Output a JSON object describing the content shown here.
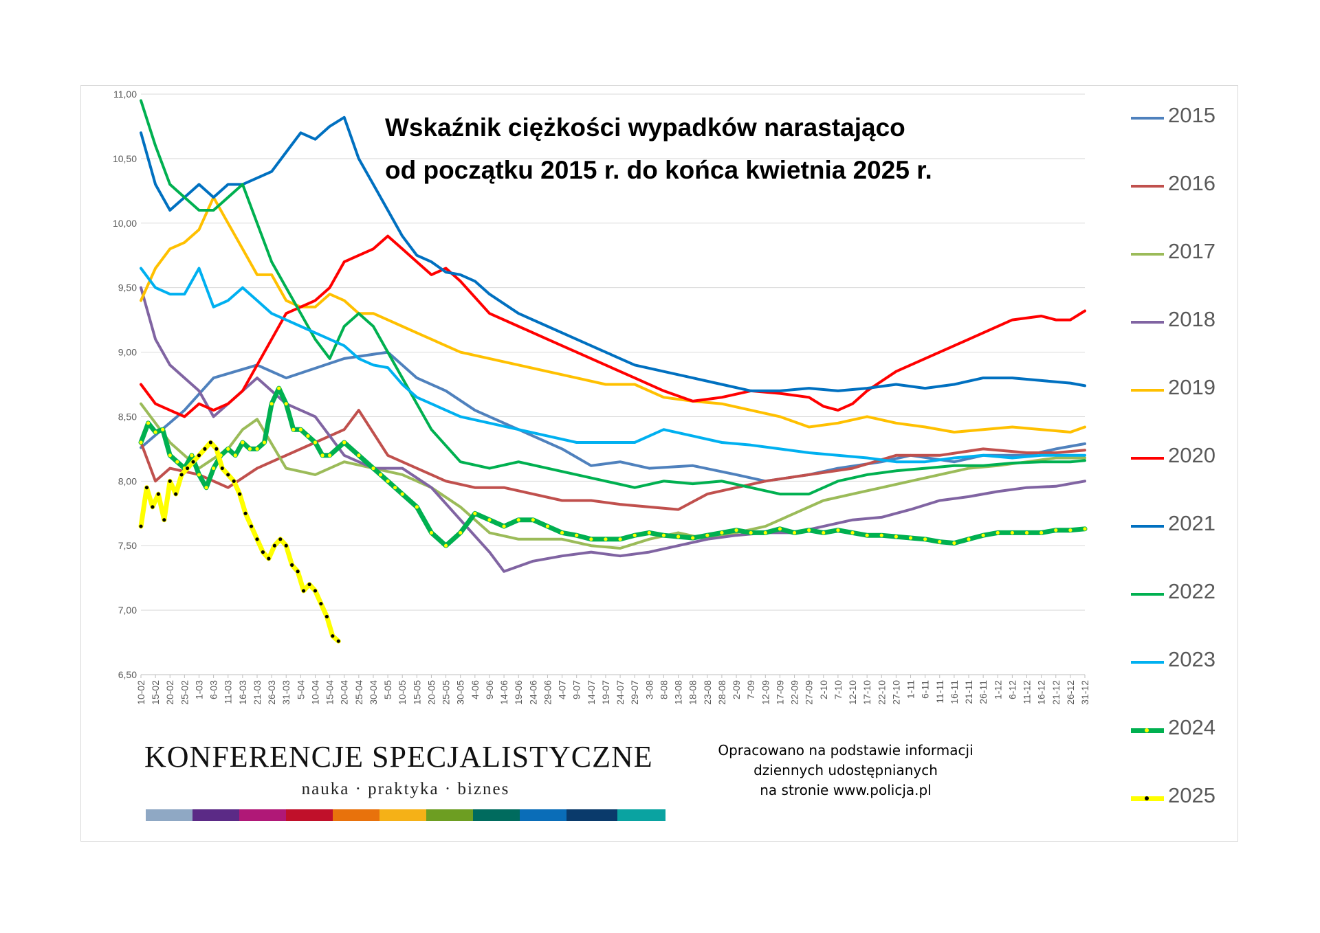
{
  "title": {
    "line1": "Wskaźnik ciężkości wypadków narastająco",
    "line2": "od początku 2015 r. do końca kwietnia 2025 r."
  },
  "chart_data": {
    "type": "line",
    "title": "Wskaźnik ciężkości wypadków narastająco od początku 2015 r. do końca kwietnia 2025 r.",
    "xlabel": "",
    "ylabel": "",
    "ylim": [
      6.5,
      11.0
    ],
    "y_ticks": [
      "6,50",
      "7,00",
      "7,50",
      "8,00",
      "8,50",
      "9,00",
      "9,50",
      "10,00",
      "10,50",
      "11,00"
    ],
    "grid": true,
    "legend_position": "right",
    "x_labels": [
      "10-02",
      "15-02",
      "20-02",
      "25-02",
      "1-03",
      "6-03",
      "11-03",
      "16-03",
      "21-03",
      "26-03",
      "31-03",
      "5-04",
      "10-04",
      "15-04",
      "20-04",
      "25-04",
      "30-04",
      "5-05",
      "10-05",
      "15-05",
      "20-05",
      "25-05",
      "30-05",
      "4-06",
      "9-06",
      "14-06",
      "19-06",
      "24-06",
      "29-06",
      "4-07",
      "9-07",
      "14-07",
      "19-07",
      "24-07",
      "29-07",
      "3-08",
      "8-08",
      "13-08",
      "18-08",
      "23-08",
      "28-08",
      "2-09",
      "7-09",
      "12-09",
      "17-09",
      "22-09",
      "27-09",
      "2-10",
      "7-10",
      "12-10",
      "17-10",
      "22-10",
      "27-10",
      "1-11",
      "6-11",
      "11-11",
      "16-11",
      "21-11",
      "26-11",
      "1-12",
      "6-12",
      "11-12",
      "16-12",
      "21-12",
      "26-12",
      "31-12"
    ],
    "series": [
      {
        "name": "2015",
        "color": "#4f81bd",
        "x": [
          0,
          3,
          5,
          8,
          10,
          14,
          17,
          19,
          21,
          23,
          26,
          29,
          31,
          33,
          35,
          38,
          41,
          43,
          46,
          48,
          51,
          53,
          56,
          58,
          61,
          63,
          65
        ],
        "values": [
          8.26,
          8.55,
          8.8,
          8.9,
          8.8,
          8.95,
          9.0,
          8.8,
          8.7,
          8.55,
          8.4,
          8.25,
          8.12,
          8.15,
          8.1,
          8.12,
          8.05,
          8.0,
          8.05,
          8.1,
          8.15,
          8.2,
          8.15,
          8.2,
          8.2,
          8.25,
          8.29
        ]
      },
      {
        "name": "2016",
        "color": "#c0504d",
        "x": [
          0,
          1,
          2,
          4,
          6,
          8,
          10,
          12,
          14,
          15,
          17,
          19,
          21,
          23,
          25,
          27,
          29,
          31,
          33,
          35,
          37,
          39,
          41,
          43,
          46,
          49,
          52,
          55,
          58,
          61,
          63,
          65
        ],
        "values": [
          8.3,
          8.0,
          8.1,
          8.05,
          7.95,
          8.1,
          8.2,
          8.3,
          8.4,
          8.55,
          8.2,
          8.1,
          8.0,
          7.95,
          7.95,
          7.9,
          7.85,
          7.85,
          7.82,
          7.8,
          7.78,
          7.9,
          7.95,
          8.0,
          8.05,
          8.1,
          8.2,
          8.2,
          8.25,
          8.22,
          8.22,
          8.24
        ]
      },
      {
        "name": "2017",
        "color": "#9bbb59",
        "x": [
          0,
          2,
          4,
          6,
          7,
          8,
          10,
          12,
          14,
          16,
          18,
          20,
          22,
          24,
          26,
          27,
          29,
          31,
          33,
          35,
          37,
          39,
          41,
          43,
          45,
          47,
          49,
          51,
          53,
          55,
          57,
          59,
          61,
          63,
          65
        ],
        "values": [
          8.6,
          8.3,
          8.1,
          8.25,
          8.4,
          8.48,
          8.1,
          8.05,
          8.15,
          8.1,
          8.05,
          7.95,
          7.8,
          7.6,
          7.55,
          7.55,
          7.55,
          7.5,
          7.48,
          7.55,
          7.6,
          7.55,
          7.6,
          7.65,
          7.75,
          7.85,
          7.9,
          7.95,
          8.0,
          8.05,
          8.1,
          8.12,
          8.15,
          8.18,
          8.18
        ]
      },
      {
        "name": "2018",
        "color": "#8064a2",
        "x": [
          0,
          1,
          2,
          4,
          5,
          6,
          7,
          8,
          10,
          12,
          13,
          14,
          16,
          18,
          20,
          22,
          24,
          25,
          27,
          29,
          31,
          33,
          35,
          37,
          39,
          41,
          43,
          45,
          47,
          49,
          51,
          53,
          55,
          57,
          59,
          61,
          63,
          65
        ],
        "values": [
          9.5,
          9.1,
          8.9,
          8.7,
          8.5,
          8.6,
          8.7,
          8.8,
          8.6,
          8.5,
          8.35,
          8.2,
          8.1,
          8.1,
          7.95,
          7.7,
          7.45,
          7.3,
          7.38,
          7.42,
          7.45,
          7.42,
          7.45,
          7.5,
          7.55,
          7.58,
          7.6,
          7.6,
          7.65,
          7.7,
          7.72,
          7.78,
          7.85,
          7.88,
          7.92,
          7.95,
          7.96,
          8.0
        ]
      },
      {
        "name": "2019",
        "color": "#ffc000",
        "x": [
          0,
          1,
          2,
          3,
          4,
          5,
          6,
          7,
          8,
          9,
          10,
          11,
          12,
          13,
          14,
          15,
          16,
          17,
          18,
          19,
          20,
          22,
          24,
          26,
          28,
          30,
          32,
          34,
          36,
          38,
          40,
          42,
          44,
          46,
          48,
          50,
          52,
          54,
          56,
          58,
          60,
          62,
          64,
          65
        ],
        "values": [
          9.4,
          9.65,
          9.8,
          9.85,
          9.95,
          10.2,
          10.0,
          9.8,
          9.6,
          9.6,
          9.4,
          9.35,
          9.35,
          9.45,
          9.4,
          9.3,
          9.3,
          9.25,
          9.2,
          9.15,
          9.1,
          9.0,
          8.95,
          8.9,
          8.85,
          8.8,
          8.75,
          8.75,
          8.65,
          8.62,
          8.6,
          8.55,
          8.5,
          8.42,
          8.45,
          8.5,
          8.45,
          8.42,
          8.38,
          8.4,
          8.42,
          8.4,
          8.38,
          8.42
        ]
      },
      {
        "name": "2020",
        "color": "#ff0000",
        "x": [
          0,
          1,
          2,
          3,
          4,
          5,
          6,
          7,
          8,
          9,
          10,
          11,
          12,
          13,
          14,
          15,
          16,
          17,
          18,
          19,
          20,
          21,
          22,
          24,
          26,
          28,
          30,
          32,
          34,
          36,
          38,
          40,
          42,
          44,
          46,
          47,
          48,
          49,
          50,
          52,
          54,
          56,
          58,
          60,
          62,
          63,
          64,
          65
        ],
        "values": [
          8.75,
          8.6,
          8.55,
          8.5,
          8.6,
          8.55,
          8.6,
          8.7,
          8.9,
          9.1,
          9.3,
          9.35,
          9.4,
          9.5,
          9.7,
          9.75,
          9.8,
          9.9,
          9.8,
          9.7,
          9.6,
          9.65,
          9.55,
          9.3,
          9.2,
          9.1,
          9.0,
          8.9,
          8.8,
          8.7,
          8.62,
          8.65,
          8.7,
          8.68,
          8.65,
          8.58,
          8.55,
          8.6,
          8.7,
          8.85,
          8.95,
          9.05,
          9.15,
          9.25,
          9.28,
          9.25,
          9.25,
          9.32
        ]
      },
      {
        "name": "2021",
        "color": "#0070c0",
        "x": [
          0,
          1,
          2,
          3,
          4,
          5,
          6,
          7,
          8,
          9,
          10,
          11,
          12,
          13,
          14,
          15,
          16,
          17,
          18,
          19,
          20,
          21,
          22,
          23,
          24,
          26,
          28,
          30,
          32,
          34,
          36,
          38,
          40,
          42,
          44,
          46,
          48,
          50,
          52,
          54,
          56,
          58,
          60,
          62,
          64,
          65
        ],
        "values": [
          10.7,
          10.3,
          10.1,
          10.2,
          10.3,
          10.2,
          10.3,
          10.3,
          10.35,
          10.4,
          10.55,
          10.7,
          10.65,
          10.75,
          10.82,
          10.5,
          10.3,
          10.1,
          9.9,
          9.75,
          9.7,
          9.62,
          9.6,
          9.55,
          9.45,
          9.3,
          9.2,
          9.1,
          9.0,
          8.9,
          8.85,
          8.8,
          8.75,
          8.7,
          8.7,
          8.72,
          8.7,
          8.72,
          8.75,
          8.72,
          8.75,
          8.8,
          8.8,
          8.78,
          8.76,
          8.74
        ]
      },
      {
        "name": "2022",
        "color": "#00b050",
        "x": [
          0,
          1,
          2,
          3,
          4,
          5,
          6,
          7,
          8,
          9,
          10,
          11,
          12,
          13,
          14,
          15,
          16,
          17,
          18,
          19,
          20,
          22,
          24,
          26,
          28,
          30,
          32,
          34,
          36,
          38,
          40,
          42,
          44,
          46,
          48,
          50,
          52,
          54,
          56,
          58,
          60,
          62,
          64,
          65
        ],
        "values": [
          10.95,
          10.6,
          10.3,
          10.2,
          10.1,
          10.1,
          10.2,
          10.3,
          10.0,
          9.7,
          9.5,
          9.3,
          9.1,
          8.95,
          9.2,
          9.3,
          9.2,
          9.0,
          8.8,
          8.6,
          8.4,
          8.15,
          8.1,
          8.15,
          8.1,
          8.05,
          8.0,
          7.95,
          8.0,
          7.98,
          8.0,
          7.95,
          7.9,
          7.9,
          8.0,
          8.05,
          8.08,
          8.1,
          8.12,
          8.12,
          8.14,
          8.15,
          8.15,
          8.16
        ]
      },
      {
        "name": "2023",
        "color": "#00b0f0",
        "x": [
          0,
          1,
          2,
          3,
          4,
          5,
          6,
          7,
          8,
          9,
          10,
          11,
          12,
          13,
          14,
          15,
          16,
          17,
          18,
          19,
          20,
          22,
          24,
          26,
          28,
          30,
          32,
          34,
          36,
          38,
          40,
          42,
          44,
          46,
          48,
          50,
          52,
          54,
          56,
          58,
          60,
          62,
          64,
          65
        ],
        "values": [
          9.65,
          9.5,
          9.45,
          9.45,
          9.65,
          9.35,
          9.4,
          9.5,
          9.4,
          9.3,
          9.25,
          9.2,
          9.15,
          9.1,
          9.05,
          8.95,
          8.9,
          8.88,
          8.75,
          8.65,
          8.6,
          8.5,
          8.45,
          8.4,
          8.35,
          8.3,
          8.3,
          8.3,
          8.4,
          8.35,
          8.3,
          8.28,
          8.25,
          8.22,
          8.2,
          8.18,
          8.15,
          8.15,
          8.18,
          8.2,
          8.18,
          8.2,
          8.2,
          8.2
        ]
      },
      {
        "name": "2024",
        "color": "#00b050",
        "marker": "#ffff00",
        "x": [
          0,
          0.5,
          1,
          1.5,
          2,
          2.5,
          3,
          3.5,
          4,
          4.5,
          5,
          5.5,
          6,
          6.5,
          7,
          7.5,
          8,
          8.5,
          9,
          9.5,
          10,
          10.5,
          11,
          11.5,
          12,
          12.5,
          13,
          14,
          15,
          16,
          16.5,
          17,
          17.5,
          18,
          19,
          20,
          21,
          22,
          23,
          24,
          25,
          26,
          27,
          28,
          29,
          30,
          31,
          32,
          33,
          34,
          35,
          36,
          37,
          38,
          39,
          40,
          41,
          42,
          43,
          44,
          45,
          46,
          47,
          48,
          49,
          50,
          51,
          52,
          53,
          54,
          55,
          56,
          57,
          58,
          59,
          60,
          61,
          62,
          63,
          64,
          65
        ],
        "values": [
          8.3,
          8.45,
          8.38,
          8.4,
          8.2,
          8.15,
          8.1,
          8.2,
          8.05,
          7.95,
          8.1,
          8.2,
          8.25,
          8.2,
          8.3,
          8.25,
          8.25,
          8.3,
          8.6,
          8.72,
          8.6,
          8.4,
          8.4,
          8.35,
          8.3,
          8.2,
          8.2,
          8.3,
          8.2,
          8.1,
          8.05,
          8.0,
          7.95,
          7.9,
          7.8,
          7.6,
          7.5,
          7.6,
          7.75,
          7.7,
          7.65,
          7.7,
          7.7,
          7.65,
          7.6,
          7.58,
          7.55,
          7.55,
          7.55,
          7.58,
          7.6,
          7.58,
          7.57,
          7.56,
          7.58,
          7.6,
          7.62,
          7.6,
          7.6,
          7.63,
          7.6,
          7.62,
          7.6,
          7.62,
          7.6,
          7.58,
          7.58,
          7.57,
          7.56,
          7.55,
          7.53,
          7.52,
          7.55,
          7.58,
          7.6,
          7.6,
          7.6,
          7.6,
          7.62,
          7.62,
          7.63
        ]
      },
      {
        "name": "2025",
        "color": "#ffff00",
        "marker": "#000000",
        "x": [
          0,
          0.4,
          0.8,
          1.2,
          1.6,
          2,
          2.4,
          2.8,
          3.2,
          3.6,
          4,
          4.4,
          4.8,
          5.2,
          5.6,
          6,
          6.4,
          6.8,
          7.2,
          7.6,
          8,
          8.4,
          8.8,
          9.2,
          9.6,
          10,
          10.4,
          10.8,
          11.2,
          11.6,
          12,
          12.4,
          12.8,
          13.2,
          13.6,
          14,
          14.4,
          14.8,
          15,
          15.2,
          15.4,
          15.6,
          15.8,
          16,
          16.4,
          16.8,
          17.2,
          17.6,
          18
        ],
        "values": [
          7.65,
          7.95,
          7.8,
          7.9,
          7.7,
          8.0,
          7.9,
          8.05,
          8.1,
          8.15,
          8.2,
          8.25,
          8.3,
          8.25,
          8.1,
          8.05,
          8.0,
          7.9,
          7.75,
          7.65,
          7.55,
          7.45,
          7.4,
          7.5,
          7.55,
          7.5,
          7.35,
          7.3,
          7.15,
          7.2,
          7.15,
          7.05,
          6.95,
          6.8,
          6.76,
          null,
          null,
          null,
          null,
          null,
          null,
          null,
          null,
          null,
          null,
          null,
          null,
          null,
          null
        ]
      }
    ]
  },
  "legend": {
    "items": [
      {
        "label": "2015",
        "color": "#4f81bd"
      },
      {
        "label": "2016",
        "color": "#c0504d"
      },
      {
        "label": "2017",
        "color": "#9bbb59"
      },
      {
        "label": "2018",
        "color": "#8064a2"
      },
      {
        "label": "2019",
        "color": "#ffc000"
      },
      {
        "label": "2020",
        "color": "#ff0000"
      },
      {
        "label": "2021",
        "color": "#0070c0"
      },
      {
        "label": "2022",
        "color": "#00b050"
      },
      {
        "label": "2023",
        "color": "#00b0f0"
      },
      {
        "label": "2024",
        "color": "#00b050",
        "marker": "#ffff00"
      },
      {
        "label": "2025",
        "color": "#ffff00",
        "marker": "#000000"
      }
    ]
  },
  "logo": {
    "name": "KONFERENCJE SPECJALISTYCZNE",
    "tagline": "nauka · praktyka · biznes",
    "bar_colors": [
      "#8fa8c4",
      "#5b2a86",
      "#b01877",
      "#c0102a",
      "#e8720c",
      "#f5b117",
      "#6d9e22",
      "#006b5e",
      "#0a6db8",
      "#0a3a6b",
      "#0aa3a1"
    ]
  },
  "source": {
    "line1": "Opracowano na podstawie informacji",
    "line2": "dziennych udostępnianych",
    "line3": "na stronie www.policja.pl"
  }
}
